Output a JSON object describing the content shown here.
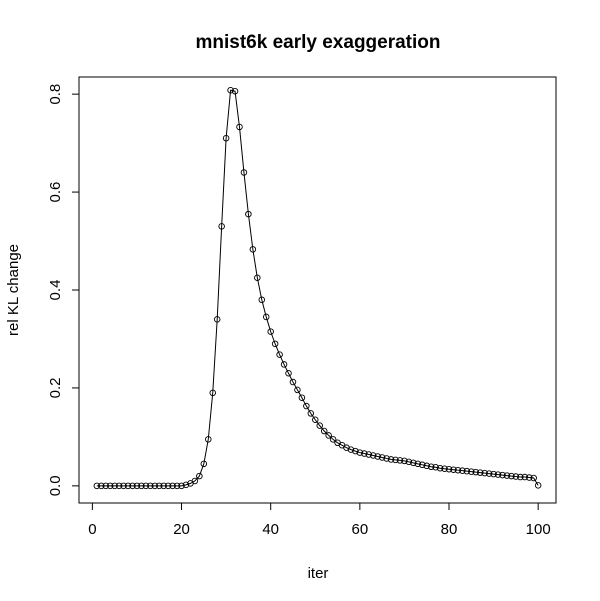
{
  "chart_data": {
    "type": "line",
    "title": "mnist6k early exaggeration",
    "xlabel": "iter",
    "ylabel": "rel KL change",
    "xlim": [
      -3,
      104
    ],
    "ylim": [
      -0.035,
      0.835
    ],
    "xticks": [
      0,
      20,
      40,
      60,
      80,
      100
    ],
    "yticks": [
      0.0,
      0.2,
      0.4,
      0.6,
      0.8
    ],
    "xtick_labels": [
      "0",
      "20",
      "40",
      "60",
      "80",
      "100"
    ],
    "ytick_labels": [
      "0.0",
      "0.2",
      "0.4",
      "0.6",
      "0.8"
    ],
    "grid": false,
    "legend": "none",
    "markers": "open-circle",
    "line_color": "#000000",
    "series": [
      {
        "x": [
          1,
          2,
          3,
          4,
          5,
          6,
          7,
          8,
          9,
          10,
          11,
          12,
          13,
          14,
          15,
          16,
          17,
          18,
          19,
          20,
          21,
          22,
          23,
          24,
          25,
          26,
          27,
          28,
          29,
          30,
          31,
          32,
          33,
          34,
          35,
          36,
          37,
          38,
          39,
          40,
          41,
          42,
          43,
          44,
          45,
          46,
          47,
          48,
          49,
          50,
          51,
          52,
          53,
          54,
          55,
          56,
          57,
          58,
          59,
          60,
          61,
          62,
          63,
          64,
          65,
          66,
          67,
          68,
          69,
          70,
          71,
          72,
          73,
          74,
          75,
          76,
          77,
          78,
          79,
          80,
          81,
          82,
          83,
          84,
          85,
          86,
          87,
          88,
          89,
          90,
          91,
          92,
          93,
          94,
          95,
          96,
          97,
          98,
          99,
          100
        ],
        "values": [
          0.0,
          0.0,
          0.0,
          0.0,
          0.0,
          0.0,
          0.0,
          0.0,
          0.0,
          0.0,
          0.0,
          0.0,
          0.0,
          0.0,
          0.0,
          0.0,
          0.0,
          0.0,
          0.0,
          0.0,
          0.002,
          0.005,
          0.01,
          0.02,
          0.045,
          0.095,
          0.19,
          0.34,
          0.53,
          0.71,
          0.808,
          0.806,
          0.733,
          0.64,
          0.555,
          0.483,
          0.425,
          0.38,
          0.345,
          0.315,
          0.29,
          0.268,
          0.248,
          0.23,
          0.212,
          0.196,
          0.18,
          0.163,
          0.148,
          0.135,
          0.123,
          0.112,
          0.103,
          0.095,
          0.088,
          0.083,
          0.078,
          0.074,
          0.071,
          0.068,
          0.066,
          0.064,
          0.062,
          0.06,
          0.058,
          0.056,
          0.054,
          0.053,
          0.052,
          0.051,
          0.049,
          0.047,
          0.045,
          0.043,
          0.041,
          0.039,
          0.038,
          0.036,
          0.035,
          0.034,
          0.033,
          0.032,
          0.031,
          0.03,
          0.029,
          0.028,
          0.027,
          0.026,
          0.025,
          0.024,
          0.023,
          0.022,
          0.021,
          0.02,
          0.019,
          0.018,
          0.018,
          0.017,
          0.016,
          0.001
        ]
      }
    ]
  }
}
